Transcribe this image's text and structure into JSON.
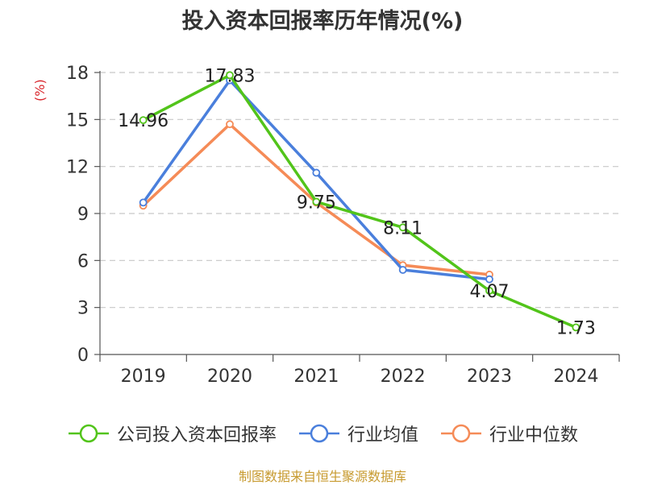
{
  "chart_data": {
    "type": "line",
    "title": "投入资本回报率历年情况(%)",
    "ylabel": "(%)",
    "xlabel": "",
    "categories": [
      "2019",
      "2020",
      "2021",
      "2022",
      "2023",
      "2024"
    ],
    "ylim": [
      0,
      18
    ],
    "yticks": [
      0,
      3,
      6,
      9,
      12,
      15,
      18
    ],
    "grid": true,
    "legend_position": "bottom",
    "series": [
      {
        "name": "公司投入资本回报率",
        "color": "#52c41a",
        "values": [
          14.96,
          17.83,
          9.75,
          8.11,
          4.07,
          1.73
        ],
        "data_labels": true
      },
      {
        "name": "行业均值",
        "color": "#4a7fdc",
        "values": [
          9.7,
          17.5,
          11.6,
          5.4,
          4.8,
          null
        ],
        "data_labels": false
      },
      {
        "name": "行业中位数",
        "color": "#f58b57",
        "values": [
          9.5,
          14.7,
          9.7,
          5.7,
          5.1,
          null
        ],
        "data_labels": false
      }
    ]
  },
  "source": "制图数据来自恒生聚源数据库"
}
